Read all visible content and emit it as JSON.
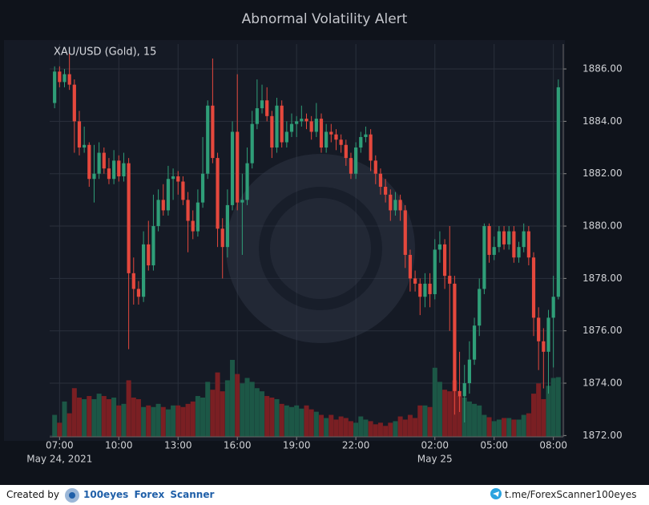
{
  "chart_data": {
    "type": "candlestick",
    "title": "Abnormal Volatility Alert",
    "symbol_label": "XAU/USD (Gold), 15",
    "up_color": "#2f9e78",
    "down_color": "#e5483d",
    "volume_up_color": "#1c5746",
    "volume_down_color": "#7a1f23",
    "grid": true,
    "ylim": [
      1871.95,
      1886.95
    ],
    "yticks": [
      {
        "value": 1872,
        "label": "1872.00"
      },
      {
        "value": 1874,
        "label": "1874.00"
      },
      {
        "value": 1876,
        "label": "1876.00"
      },
      {
        "value": 1878,
        "label": "1878.00"
      },
      {
        "value": 1880,
        "label": "1880.00"
      },
      {
        "value": 1882,
        "label": "1882.00"
      },
      {
        "value": 1884,
        "label": "1884.00"
      },
      {
        "value": 1886,
        "label": "1886.00"
      }
    ],
    "xlim": [
      "2021-05-24T06:30",
      "2021-05-25T08:30"
    ],
    "xticks": [
      {
        "value": "2021-05-24T07:00",
        "label": "07:00"
      },
      {
        "value": "2021-05-24T10:00",
        "label": "10:00"
      },
      {
        "value": "2021-05-24T13:00",
        "label": "13:00"
      },
      {
        "value": "2021-05-24T16:00",
        "label": "16:00"
      },
      {
        "value": "2021-05-24T19:00",
        "label": "19:00"
      },
      {
        "value": "2021-05-24T22:00",
        "label": "22:00"
      },
      {
        "value": "2021-05-25T02:00",
        "label": "02:00"
      },
      {
        "value": "2021-05-25T05:00",
        "label": "05:00"
      },
      {
        "value": "2021-05-25T08:00",
        "label": "08:00"
      }
    ],
    "xtick_dates": [
      {
        "value": "2021-05-24T07:00",
        "label": "May 24, 2021"
      },
      {
        "value": "2021-05-25T02:00",
        "label": "May 25"
      }
    ],
    "vlim": [
      0,
      500
    ],
    "x": [
      "2021-05-24T06:45",
      "2021-05-24T07:00",
      "2021-05-24T07:15",
      "2021-05-24T07:30",
      "2021-05-24T07:45",
      "2021-05-24T08:00",
      "2021-05-24T08:15",
      "2021-05-24T08:30",
      "2021-05-24T08:45",
      "2021-05-24T09:00",
      "2021-05-24T09:15",
      "2021-05-24T09:30",
      "2021-05-24T09:45",
      "2021-05-24T10:00",
      "2021-05-24T10:15",
      "2021-05-24T10:30",
      "2021-05-24T10:45",
      "2021-05-24T11:00",
      "2021-05-24T11:15",
      "2021-05-24T11:30",
      "2021-05-24T11:45",
      "2021-05-24T12:00",
      "2021-05-24T12:15",
      "2021-05-24T12:30",
      "2021-05-24T12:45",
      "2021-05-24T13:00",
      "2021-05-24T13:15",
      "2021-05-24T13:30",
      "2021-05-24T13:45",
      "2021-05-24T14:00",
      "2021-05-24T14:15",
      "2021-05-24T14:30",
      "2021-05-24T14:45",
      "2021-05-24T15:00",
      "2021-05-24T15:15",
      "2021-05-24T15:30",
      "2021-05-24T15:45",
      "2021-05-24T16:00",
      "2021-05-24T16:15",
      "2021-05-24T16:30",
      "2021-05-24T16:45",
      "2021-05-24T17:00",
      "2021-05-24T17:15",
      "2021-05-24T17:30",
      "2021-05-24T17:45",
      "2021-05-24T18:00",
      "2021-05-24T18:15",
      "2021-05-24T18:30",
      "2021-05-24T18:45",
      "2021-05-24T19:00",
      "2021-05-24T19:15",
      "2021-05-24T19:30",
      "2021-05-24T19:45",
      "2021-05-24T20:00",
      "2021-05-24T20:15",
      "2021-05-24T20:30",
      "2021-05-24T20:45",
      "2021-05-24T21:00",
      "2021-05-24T21:15",
      "2021-05-24T21:30",
      "2021-05-24T21:45",
      "2021-05-24T22:00",
      "2021-05-24T22:15",
      "2021-05-24T22:30",
      "2021-05-24T22:45",
      "2021-05-24T23:00",
      "2021-05-24T23:15",
      "2021-05-24T23:30",
      "2021-05-24T23:45",
      "2021-05-25T00:00",
      "2021-05-25T00:15",
      "2021-05-25T00:30",
      "2021-05-25T00:45",
      "2021-05-25T01:00",
      "2021-05-25T01:15",
      "2021-05-25T01:30",
      "2021-05-25T01:45",
      "2021-05-25T02:00",
      "2021-05-25T02:15",
      "2021-05-25T02:30",
      "2021-05-25T02:45",
      "2021-05-25T03:00",
      "2021-05-25T03:15",
      "2021-05-25T03:30",
      "2021-05-25T03:45",
      "2021-05-25T04:00",
      "2021-05-25T04:15",
      "2021-05-25T04:30",
      "2021-05-25T04:45",
      "2021-05-25T05:00",
      "2021-05-25T05:15",
      "2021-05-25T05:30",
      "2021-05-25T05:45",
      "2021-05-25T06:00",
      "2021-05-25T06:15",
      "2021-05-25T06:30",
      "2021-05-25T06:45",
      "2021-05-25T07:00",
      "2021-05-25T07:15",
      "2021-05-25T07:30",
      "2021-05-25T07:45",
      "2021-05-25T08:00",
      "2021-05-25T08:15"
    ],
    "ohlc": [
      [
        1884.7,
        1886.1,
        1884.5,
        1885.9
      ],
      [
        1885.9,
        1886.1,
        1885.3,
        1885.5
      ],
      [
        1885.5,
        1886.0,
        1885.3,
        1885.8
      ],
      [
        1885.8,
        1886.6,
        1885.2,
        1885.4
      ],
      [
        1885.4,
        1885.6,
        1882.8,
        1884.0
      ],
      [
        1884.0,
        1884.4,
        1882.7,
        1883.0
      ],
      [
        1883.0,
        1883.8,
        1882.8,
        1883.1
      ],
      [
        1883.1,
        1883.2,
        1881.5,
        1881.8
      ],
      [
        1881.8,
        1883.1,
        1880.9,
        1882.0
      ],
      [
        1882.0,
        1883.2,
        1881.8,
        1882.8
      ],
      [
        1882.8,
        1883.0,
        1882.0,
        1882.2
      ],
      [
        1882.2,
        1882.6,
        1881.6,
        1881.8
      ],
      [
        1881.8,
        1882.9,
        1881.6,
        1882.5
      ],
      [
        1882.5,
        1882.7,
        1881.7,
        1881.9
      ],
      [
        1881.9,
        1882.8,
        1881.7,
        1882.4
      ],
      [
        1882.4,
        1882.6,
        1875.3,
        1878.2
      ],
      [
        1878.2,
        1878.8,
        1877.0,
        1877.6
      ],
      [
        1877.6,
        1877.9,
        1877.0,
        1877.3
      ],
      [
        1877.3,
        1879.8,
        1877.1,
        1879.3
      ],
      [
        1879.3,
        1880.2,
        1878.3,
        1878.5
      ],
      [
        1878.5,
        1881.2,
        1878.3,
        1880.0
      ],
      [
        1880.0,
        1881.4,
        1879.8,
        1881.0
      ],
      [
        1881.0,
        1881.6,
        1880.4,
        1880.6
      ],
      [
        1880.6,
        1882.3,
        1880.4,
        1881.8
      ],
      [
        1881.8,
        1882.2,
        1881.0,
        1881.9
      ],
      [
        1881.9,
        1882.1,
        1881.2,
        1881.7
      ],
      [
        1881.7,
        1881.9,
        1880.8,
        1881.0
      ],
      [
        1881.0,
        1881.3,
        1879.0,
        1880.2
      ],
      [
        1880.2,
        1880.6,
        1879.5,
        1879.8
      ],
      [
        1879.8,
        1881.4,
        1879.6,
        1880.9
      ],
      [
        1880.9,
        1883.4,
        1880.7,
        1882.0
      ],
      [
        1882.0,
        1884.8,
        1881.8,
        1884.6
      ],
      [
        1884.6,
        1886.4,
        1882.4,
        1882.6
      ],
      [
        1882.6,
        1882.8,
        1879.2,
        1879.9
      ],
      [
        1879.9,
        1880.3,
        1878.0,
        1879.2
      ],
      [
        1879.2,
        1881.4,
        1878.8,
        1880.8
      ],
      [
        1880.8,
        1884.0,
        1880.6,
        1883.6
      ],
      [
        1883.6,
        1885.8,
        1880.6,
        1880.9
      ],
      [
        1880.9,
        1882.0,
        1878.9,
        1881.0
      ],
      [
        1881.0,
        1883.0,
        1880.8,
        1882.4
      ],
      [
        1882.4,
        1884.4,
        1882.2,
        1883.9
      ],
      [
        1883.9,
        1885.6,
        1883.7,
        1884.5
      ],
      [
        1884.5,
        1885.4,
        1884.3,
        1884.8
      ],
      [
        1884.8,
        1885.3,
        1884.0,
        1884.2
      ],
      [
        1884.2,
        1884.4,
        1882.6,
        1883.0
      ],
      [
        1883.0,
        1884.9,
        1882.8,
        1884.6
      ],
      [
        1884.6,
        1884.8,
        1883.0,
        1883.2
      ],
      [
        1883.2,
        1884.0,
        1883.0,
        1883.6
      ],
      [
        1883.6,
        1884.3,
        1883.4,
        1883.9
      ],
      [
        1883.9,
        1884.2,
        1883.4,
        1884.0
      ],
      [
        1884.0,
        1884.6,
        1883.8,
        1884.1
      ],
      [
        1884.1,
        1884.3,
        1883.7,
        1884.0
      ],
      [
        1884.0,
        1884.2,
        1883.3,
        1883.6
      ],
      [
        1883.6,
        1884.7,
        1883.4,
        1884.1
      ],
      [
        1884.1,
        1884.3,
        1882.8,
        1883.0
      ],
      [
        1883.0,
        1883.9,
        1882.8,
        1883.6
      ],
      [
        1883.6,
        1883.9,
        1883.2,
        1883.5
      ],
      [
        1883.5,
        1883.7,
        1882.9,
        1883.3
      ],
      [
        1883.3,
        1883.5,
        1882.8,
        1883.1
      ],
      [
        1883.1,
        1883.3,
        1882.3,
        1882.6
      ],
      [
        1882.6,
        1882.8,
        1881.8,
        1882.0
      ],
      [
        1882.0,
        1883.2,
        1881.8,
        1883.0
      ],
      [
        1883.0,
        1883.6,
        1882.8,
        1883.4
      ],
      [
        1883.4,
        1883.8,
        1883.2,
        1883.5
      ],
      [
        1883.5,
        1883.7,
        1882.1,
        1882.5
      ],
      [
        1882.5,
        1882.7,
        1881.6,
        1882.0
      ],
      [
        1882.0,
        1882.2,
        1881.2,
        1881.5
      ],
      [
        1881.5,
        1881.8,
        1880.9,
        1881.2
      ],
      [
        1881.2,
        1881.4,
        1880.2,
        1880.6
      ],
      [
        1880.6,
        1881.3,
        1880.4,
        1881.0
      ],
      [
        1881.0,
        1881.2,
        1880.2,
        1880.6
      ],
      [
        1880.6,
        1880.8,
        1878.4,
        1878.9
      ],
      [
        1878.9,
        1879.1,
        1877.5,
        1878.0
      ],
      [
        1878.0,
        1878.3,
        1877.5,
        1877.8
      ],
      [
        1877.8,
        1878.0,
        1876.6,
        1877.3
      ],
      [
        1877.3,
        1878.2,
        1876.9,
        1877.8
      ],
      [
        1877.8,
        1878.2,
        1876.9,
        1877.4
      ],
      [
        1877.4,
        1879.5,
        1877.2,
        1879.1
      ],
      [
        1879.1,
        1879.8,
        1878.6,
        1879.3
      ],
      [
        1879.3,
        1879.5,
        1877.6,
        1878.1
      ],
      [
        1878.1,
        1880.0,
        1876.0,
        1877.8
      ],
      [
        1877.8,
        1878.1,
        1872.8,
        1873.7
      ],
      [
        1873.7,
        1875.2,
        1872.9,
        1873.5
      ],
      [
        1873.5,
        1874.7,
        1872.5,
        1874.0
      ],
      [
        1874.0,
        1875.6,
        1873.6,
        1874.9
      ],
      [
        1874.9,
        1876.5,
        1874.7,
        1876.2
      ],
      [
        1876.2,
        1878.0,
        1875.8,
        1877.6
      ],
      [
        1877.6,
        1880.1,
        1877.4,
        1880.0
      ],
      [
        1880.0,
        1880.1,
        1878.6,
        1878.9
      ],
      [
        1878.9,
        1879.6,
        1878.7,
        1879.2
      ],
      [
        1879.2,
        1880.0,
        1879.0,
        1879.8
      ],
      [
        1879.8,
        1880.0,
        1879.1,
        1879.3
      ],
      [
        1879.3,
        1880.0,
        1879.1,
        1879.8
      ],
      [
        1879.8,
        1880.0,
        1878.6,
        1878.8
      ],
      [
        1878.8,
        1879.4,
        1878.6,
        1879.2
      ],
      [
        1879.2,
        1880.1,
        1879.0,
        1879.8
      ],
      [
        1879.8,
        1880.0,
        1878.5,
        1878.8
      ],
      [
        1878.8,
        1879.0,
        1875.8,
        1876.5
      ],
      [
        1876.5,
        1876.9,
        1874.5,
        1875.6
      ],
      [
        1875.6,
        1876.1,
        1873.8,
        1875.2
      ],
      [
        1875.2,
        1876.8,
        1873.6,
        1876.5
      ],
      [
        1876.5,
        1878.1,
        1874.6,
        1877.3
      ],
      [
        1877.3,
        1885.6,
        1877.2,
        1885.3
      ]
    ],
    "volume": [
      28,
      18,
      45,
      30,
      62,
      50,
      48,
      52,
      48,
      55,
      52,
      48,
      50,
      40,
      42,
      72,
      50,
      48,
      38,
      40,
      38,
      42,
      38,
      35,
      40,
      40,
      38,
      42,
      45,
      52,
      50,
      70,
      60,
      82,
      58,
      72,
      98,
      80,
      68,
      75,
      70,
      62,
      58,
      52,
      50,
      48,
      42,
      40,
      38,
      40,
      36,
      40,
      35,
      32,
      28,
      24,
      28,
      22,
      26,
      24,
      20,
      18,
      26,
      22,
      20,
      16,
      18,
      14,
      18,
      20,
      26,
      22,
      28,
      24,
      40,
      40,
      38,
      88,
      70,
      60,
      58,
      72,
      52,
      50,
      45,
      42,
      40,
      28,
      25,
      20,
      22,
      24,
      24,
      22,
      22,
      28,
      30,
      55,
      68,
      48,
      65,
      75,
      76
    ]
  },
  "footer": {
    "created_by": "Created by",
    "brand": "100eyes Forex Scanner",
    "link": "t.me/ForexScanner100eyes"
  }
}
